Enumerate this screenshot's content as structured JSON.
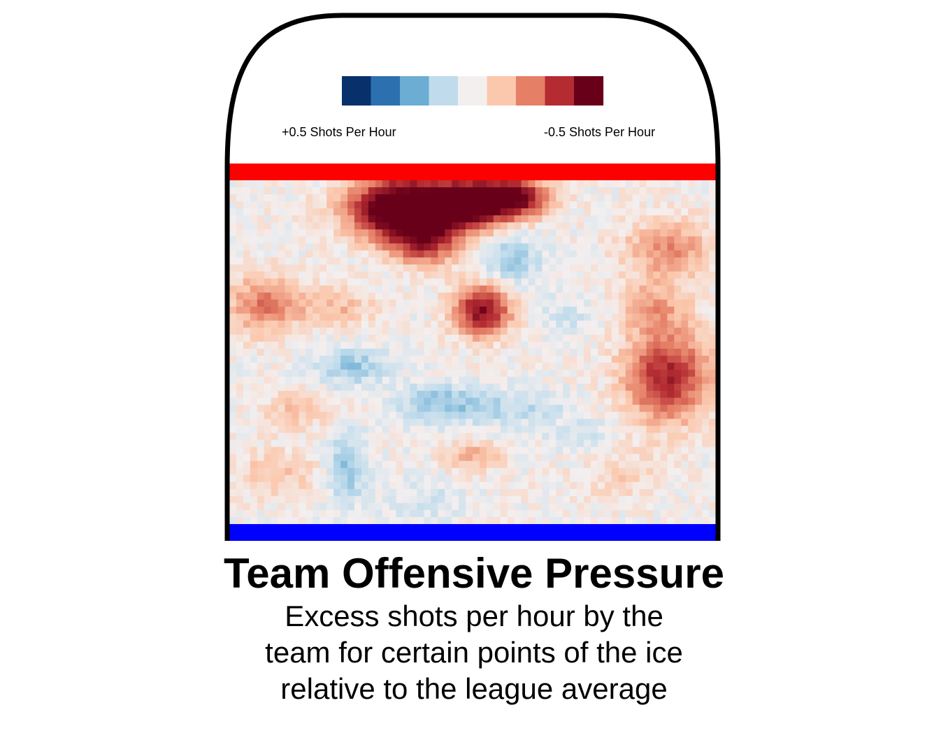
{
  "chart_data": {
    "type": "heatmap",
    "title": "Team Offensive Pressure",
    "subtitle_lines": [
      "Excess shots per hour by the",
      "team for certain points of the ice",
      "relative to the league average"
    ],
    "legend": {
      "left_label": "+0.5 Shots Per Hour",
      "right_label": "-0.5 Shots Per Hour",
      "colors": [
        "#08306b",
        "#2c70b0",
        "#6cadd4",
        "#c0dcec",
        "#f4efef",
        "#fbc8ad",
        "#e57f66",
        "#b42c32",
        "#690019"
      ]
    },
    "value_range": [
      -0.5,
      0.5
    ],
    "grid": {
      "cols": 70,
      "rows": 49
    },
    "hotspots": [
      {
        "x": 0.35,
        "y": 0.08,
        "sx": 0.07,
        "sy": 0.06,
        "v": 0.65
      },
      {
        "x": 0.48,
        "y": 0.07,
        "sx": 0.06,
        "sy": 0.05,
        "v": 0.55
      },
      {
        "x": 0.58,
        "y": 0.05,
        "sx": 0.05,
        "sy": 0.04,
        "v": 0.5
      },
      {
        "x": 0.4,
        "y": 0.17,
        "sx": 0.05,
        "sy": 0.05,
        "v": 0.35
      },
      {
        "x": 0.52,
        "y": 0.38,
        "sx": 0.04,
        "sy": 0.05,
        "v": 0.45
      },
      {
        "x": 0.9,
        "y": 0.57,
        "sx": 0.06,
        "sy": 0.09,
        "v": 0.38
      },
      {
        "x": 0.9,
        "y": 0.2,
        "sx": 0.06,
        "sy": 0.06,
        "v": 0.2
      },
      {
        "x": 0.87,
        "y": 0.37,
        "sx": 0.05,
        "sy": 0.05,
        "v": 0.16
      },
      {
        "x": 0.07,
        "y": 0.36,
        "sx": 0.05,
        "sy": 0.06,
        "v": 0.22
      },
      {
        "x": 0.22,
        "y": 0.37,
        "sx": 0.06,
        "sy": 0.04,
        "v": 0.12
      },
      {
        "x": 0.14,
        "y": 0.67,
        "sx": 0.05,
        "sy": 0.04,
        "v": 0.1
      },
      {
        "x": 0.1,
        "y": 0.85,
        "sx": 0.06,
        "sy": 0.05,
        "v": 0.1
      },
      {
        "x": 0.5,
        "y": 0.8,
        "sx": 0.04,
        "sy": 0.03,
        "v": 0.14
      },
      {
        "x": 0.8,
        "y": 0.85,
        "sx": 0.06,
        "sy": 0.05,
        "v": 0.08
      },
      {
        "x": 0.58,
        "y": 0.23,
        "sx": 0.04,
        "sy": 0.05,
        "v": -0.15
      },
      {
        "x": 0.25,
        "y": 0.54,
        "sx": 0.05,
        "sy": 0.04,
        "v": -0.15
      },
      {
        "x": 0.43,
        "y": 0.65,
        "sx": 0.06,
        "sy": 0.04,
        "v": -0.15
      },
      {
        "x": 0.58,
        "y": 0.66,
        "sx": 0.08,
        "sy": 0.04,
        "v": -0.1
      },
      {
        "x": 0.24,
        "y": 0.84,
        "sx": 0.03,
        "sy": 0.07,
        "v": -0.16
      },
      {
        "x": 0.73,
        "y": 0.75,
        "sx": 0.05,
        "sy": 0.04,
        "v": -0.06
      },
      {
        "x": 0.7,
        "y": 0.4,
        "sx": 0.05,
        "sy": 0.04,
        "v": -0.06
      },
      {
        "x": 0.4,
        "y": 0.93,
        "sx": 0.06,
        "sy": 0.04,
        "v": -0.06
      }
    ]
  }
}
